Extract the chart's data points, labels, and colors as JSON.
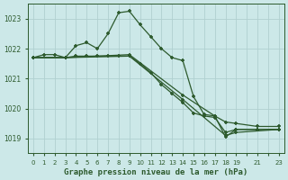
{
  "background_color": "#cce8e8",
  "grid_color": "#b0d0d0",
  "line_color": "#2d5a2d",
  "marker_color": "#2d5a2d",
  "xlabel": "Graphe pression niveau de la mer (hPa)",
  "xlabel_color": "#2d5a2d",
  "tick_color": "#2d5a2d",
  "ylim": [
    1018.5,
    1023.5
  ],
  "xlim": [
    -0.5,
    23.5
  ],
  "yticks": [
    1019,
    1020,
    1021,
    1022,
    1023
  ],
  "xticks": [
    0,
    1,
    2,
    3,
    4,
    5,
    6,
    7,
    8,
    9,
    10,
    11,
    12,
    13,
    14,
    15,
    16,
    17,
    18,
    19,
    21,
    23
  ],
  "series1": [
    [
      0,
      1021.7
    ],
    [
      1,
      1021.8
    ],
    [
      2,
      1021.8
    ],
    [
      3,
      1021.7
    ],
    [
      4,
      1022.1
    ],
    [
      5,
      1022.2
    ],
    [
      6,
      1022.0
    ],
    [
      7,
      1022.5
    ],
    [
      8,
      1023.2
    ],
    [
      9,
      1023.25
    ],
    [
      10,
      1022.8
    ],
    [
      11,
      1022.4
    ],
    [
      12,
      1022.0
    ],
    [
      13,
      1021.7
    ],
    [
      14,
      1021.6
    ],
    [
      15,
      1020.4
    ],
    [
      16,
      1019.8
    ],
    [
      17,
      1019.75
    ],
    [
      18,
      1019.05
    ],
    [
      19,
      1019.3
    ],
    [
      21,
      1019.3
    ],
    [
      23,
      1019.3
    ]
  ],
  "series2": [
    [
      0,
      1021.7
    ],
    [
      3,
      1021.7
    ],
    [
      4,
      1021.75
    ],
    [
      5,
      1021.75
    ],
    [
      6,
      1021.75
    ],
    [
      7,
      1021.75
    ],
    [
      8,
      1021.75
    ],
    [
      9,
      1021.75
    ],
    [
      10,
      1021.5
    ],
    [
      11,
      1021.2
    ],
    [
      12,
      1020.8
    ],
    [
      13,
      1020.5
    ],
    [
      14,
      1020.2
    ],
    [
      15,
      1019.85
    ],
    [
      16,
      1019.75
    ],
    [
      17,
      1019.7
    ],
    [
      18,
      1019.2
    ],
    [
      19,
      1019.3
    ],
    [
      21,
      1019.3
    ],
    [
      23,
      1019.3
    ]
  ],
  "series3": [
    [
      0,
      1021.7
    ],
    [
      3,
      1021.7
    ],
    [
      9,
      1021.75
    ],
    [
      14,
      1020.3
    ],
    [
      18,
      1019.1
    ],
    [
      19,
      1019.2
    ],
    [
      23,
      1019.3
    ]
  ],
  "series4": [
    [
      0,
      1021.7
    ],
    [
      3,
      1021.7
    ],
    [
      9,
      1021.8
    ],
    [
      14,
      1020.45
    ],
    [
      17,
      1019.75
    ],
    [
      18,
      1019.55
    ],
    [
      19,
      1019.5
    ],
    [
      21,
      1019.4
    ],
    [
      23,
      1019.4
    ]
  ]
}
